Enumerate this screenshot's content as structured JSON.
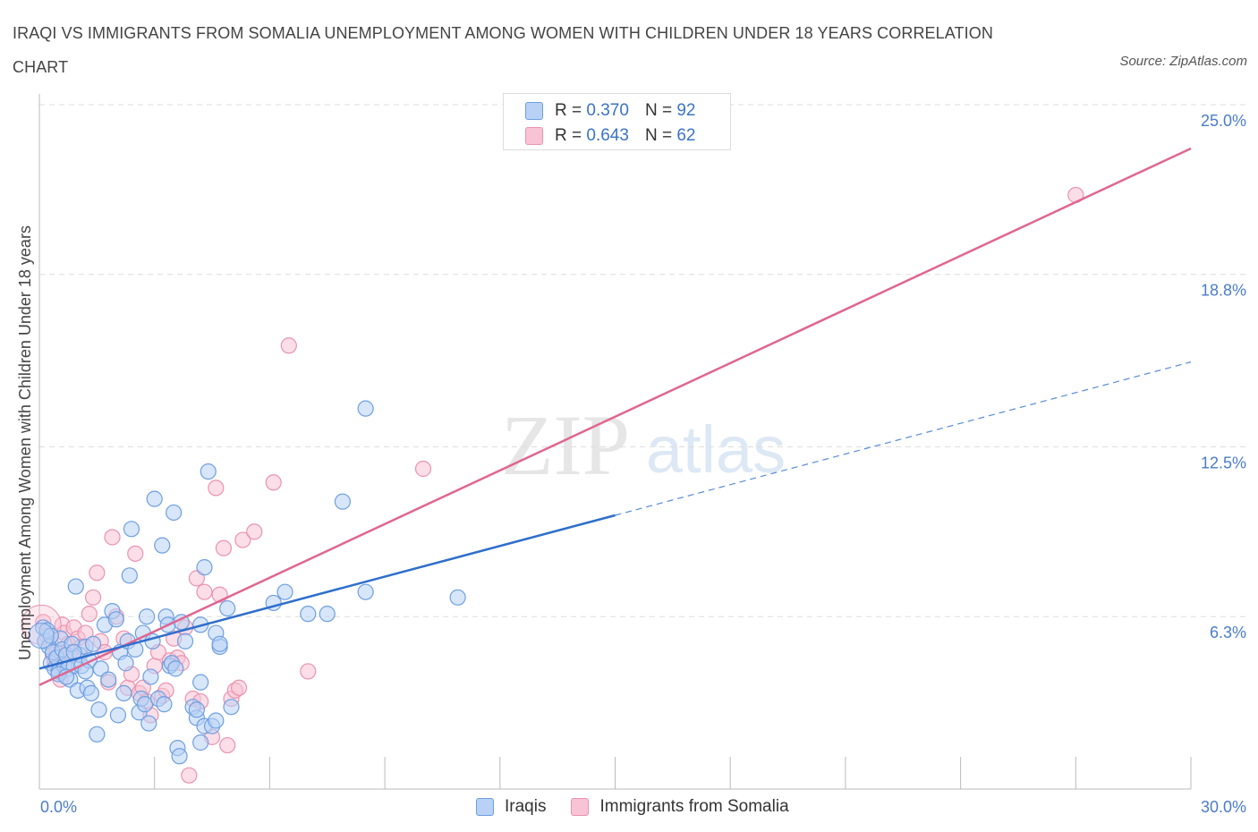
{
  "header": {
    "title": "IRAQI VS IMMIGRANTS FROM SOMALIA UNEMPLOYMENT AMONG WOMEN WITH CHILDREN UNDER 18 YEARS CORRELATION CHART",
    "source": "Source: ZipAtlas.com"
  },
  "legend": {
    "rows": [
      {
        "r_label": "R =",
        "r_value": "0.370",
        "n_label": "N =",
        "n_value": "92"
      },
      {
        "r_label": "R =",
        "r_value": "0.643",
        "n_label": "N =",
        "n_value": "62"
      }
    ]
  },
  "watermark": {
    "zip": "ZIP",
    "atlas": "atlas"
  },
  "colors": {
    "iraqis_fill": "#b8d1f5",
    "iraqis_stroke": "#6e9fe0",
    "iraqis_line": "#2f6ecb",
    "somalia_fill": "#f8c3d4",
    "somalia_stroke": "#ea93b0",
    "somalia_line": "#e06690",
    "tick_label": "#4a7cc9",
    "grid": "#dddddd"
  },
  "chart_data": {
    "type": "scatter",
    "title": "IRAQI VS IMMIGRANTS FROM SOMALIA UNEMPLOYMENT AMONG WOMEN WITH CHILDREN UNDER 18 YEARS CORRELATION CHART",
    "xlabel": "",
    "ylabel": "Unemployment Among Women with Children Under 18 years",
    "xlim": [
      0,
      30
    ],
    "ylim": [
      0,
      25
    ],
    "x_tick_labels": [
      "0.0%",
      "30.0%"
    ],
    "y_ticks": [
      6.3,
      12.5,
      18.8,
      25.0
    ],
    "y_tick_labels": [
      "6.3%",
      "12.5%",
      "18.8%",
      "25.0%"
    ],
    "grid": "horizontal dashed",
    "legend_position": "top-center and bottom",
    "series": [
      {
        "name": "Iraqis",
        "r": 0.37,
        "n": 92,
        "trend": {
          "x0": 0,
          "y0": 4.4,
          "x1": 15,
          "y1": 10.0,
          "dashed_to_x": 30,
          "dashed_to_y": 15.6
        },
        "points": [
          [
            0.1,
            5.9
          ],
          [
            0.15,
            5.4
          ],
          [
            0.2,
            5.8
          ],
          [
            0.25,
            5.2
          ],
          [
            0.3,
            4.6
          ],
          [
            0.35,
            5.0
          ],
          [
            0.4,
            4.4
          ],
          [
            0.45,
            4.8
          ],
          [
            0.5,
            4.3
          ],
          [
            0.55,
            5.5
          ],
          [
            0.6,
            5.1
          ],
          [
            0.65,
            4.5
          ],
          [
            0.7,
            4.9
          ],
          [
            0.75,
            4.4
          ],
          [
            0.8,
            4.0
          ],
          [
            0.85,
            5.3
          ],
          [
            0.9,
            4.5
          ],
          [
            0.95,
            7.4
          ],
          [
            1.0,
            3.6
          ],
          [
            1.05,
            4.9
          ],
          [
            1.1,
            4.5
          ],
          [
            1.2,
            5.2
          ],
          [
            1.25,
            3.7
          ],
          [
            1.3,
            4.7
          ],
          [
            1.35,
            3.5
          ],
          [
            1.4,
            5.3
          ],
          [
            1.5,
            2.0
          ],
          [
            1.55,
            2.9
          ],
          [
            1.6,
            4.4
          ],
          [
            1.7,
            6.0
          ],
          [
            1.8,
            4.0
          ],
          [
            1.9,
            6.5
          ],
          [
            2.0,
            6.2
          ],
          [
            2.05,
            2.7
          ],
          [
            2.1,
            5.0
          ],
          [
            2.2,
            3.5
          ],
          [
            2.25,
            4.6
          ],
          [
            2.3,
            5.4
          ],
          [
            2.35,
            7.8
          ],
          [
            2.4,
            9.5
          ],
          [
            2.5,
            5.1
          ],
          [
            2.6,
            2.8
          ],
          [
            2.65,
            3.3
          ],
          [
            2.7,
            5.7
          ],
          [
            2.75,
            3.1
          ],
          [
            2.8,
            6.3
          ],
          [
            2.85,
            2.4
          ],
          [
            2.9,
            4.1
          ],
          [
            2.95,
            5.4
          ],
          [
            3.0,
            10.6
          ],
          [
            3.1,
            3.3
          ],
          [
            3.2,
            8.9
          ],
          [
            3.25,
            3.1
          ],
          [
            3.3,
            6.3
          ],
          [
            3.35,
            6.0
          ],
          [
            3.4,
            4.5
          ],
          [
            3.45,
            4.6
          ],
          [
            3.5,
            10.1
          ],
          [
            3.55,
            4.4
          ],
          [
            3.6,
            1.5
          ],
          [
            3.65,
            1.2
          ],
          [
            3.7,
            6.1
          ],
          [
            3.8,
            5.4
          ],
          [
            4.0,
            3.0
          ],
          [
            4.1,
            2.6
          ],
          [
            4.2,
            3.9
          ],
          [
            4.3,
            2.3
          ],
          [
            4.4,
            11.6
          ],
          [
            4.5,
            2.3
          ],
          [
            4.6,
            2.5
          ],
          [
            4.7,
            5.2
          ],
          [
            4.1,
            2.9
          ],
          [
            4.2,
            1.7
          ],
          [
            4.2,
            6.0
          ],
          [
            4.3,
            8.1
          ],
          [
            4.6,
            5.7
          ],
          [
            4.7,
            5.3
          ],
          [
            4.9,
            6.6
          ],
          [
            5.0,
            3.0
          ],
          [
            6.1,
            6.8
          ],
          [
            6.4,
            7.2
          ],
          [
            7.0,
            6.4
          ],
          [
            7.5,
            6.4
          ],
          [
            7.9,
            10.5
          ],
          [
            8.5,
            7.2
          ],
          [
            8.5,
            13.9
          ],
          [
            10.9,
            7.0
          ],
          [
            0.5,
            4.2
          ],
          [
            0.7,
            4.1
          ],
          [
            1.2,
            4.3
          ],
          [
            0.3,
            5.6
          ],
          [
            0.9,
            5.0
          ]
        ]
      },
      {
        "name": "Immigrants from Somalia",
        "r": 0.643,
        "n": 62,
        "trend": {
          "x0": 0,
          "y0": 3.8,
          "x1": 30,
          "y1": 23.4
        },
        "points": [
          [
            0.1,
            6.1
          ],
          [
            0.2,
            5.6
          ],
          [
            0.3,
            5.3
          ],
          [
            0.35,
            4.9
          ],
          [
            0.4,
            4.6
          ],
          [
            0.45,
            5.0
          ],
          [
            0.5,
            4.3
          ],
          [
            0.55,
            4.0
          ],
          [
            0.6,
            6.0
          ],
          [
            0.65,
            5.7
          ],
          [
            0.7,
            4.8
          ],
          [
            0.75,
            5.3
          ],
          [
            0.8,
            5.0
          ],
          [
            0.9,
            5.9
          ],
          [
            1.0,
            5.5
          ],
          [
            1.1,
            5.2
          ],
          [
            1.2,
            5.7
          ],
          [
            1.3,
            6.4
          ],
          [
            1.4,
            7.0
          ],
          [
            1.5,
            7.9
          ],
          [
            1.6,
            5.4
          ],
          [
            1.7,
            5.0
          ],
          [
            1.8,
            3.9
          ],
          [
            1.9,
            9.2
          ],
          [
            2.0,
            6.3
          ],
          [
            2.2,
            5.5
          ],
          [
            2.3,
            3.7
          ],
          [
            2.4,
            4.2
          ],
          [
            2.5,
            8.6
          ],
          [
            2.6,
            3.5
          ],
          [
            2.7,
            3.7
          ],
          [
            2.8,
            3.2
          ],
          [
            2.9,
            2.7
          ],
          [
            3.0,
            4.5
          ],
          [
            3.1,
            5.0
          ],
          [
            3.2,
            3.4
          ],
          [
            3.3,
            3.6
          ],
          [
            3.4,
            4.7
          ],
          [
            3.5,
            5.5
          ],
          [
            3.6,
            4.8
          ],
          [
            3.7,
            4.6
          ],
          [
            3.8,
            5.9
          ],
          [
            3.9,
            0.5
          ],
          [
            4.0,
            3.3
          ],
          [
            4.1,
            7.7
          ],
          [
            4.2,
            3.2
          ],
          [
            4.3,
            7.2
          ],
          [
            4.5,
            1.9
          ],
          [
            4.6,
            11.0
          ],
          [
            4.7,
            7.1
          ],
          [
            4.8,
            8.8
          ],
          [
            4.9,
            1.6
          ],
          [
            5.0,
            3.3
          ],
          [
            5.1,
            3.6
          ],
          [
            5.2,
            3.7
          ],
          [
            5.3,
            9.1
          ],
          [
            5.6,
            9.4
          ],
          [
            6.1,
            11.2
          ],
          [
            6.5,
            16.2
          ],
          [
            7.0,
            4.3
          ],
          [
            10.0,
            11.7
          ],
          [
            27.0,
            21.7
          ]
        ]
      }
    ]
  }
}
